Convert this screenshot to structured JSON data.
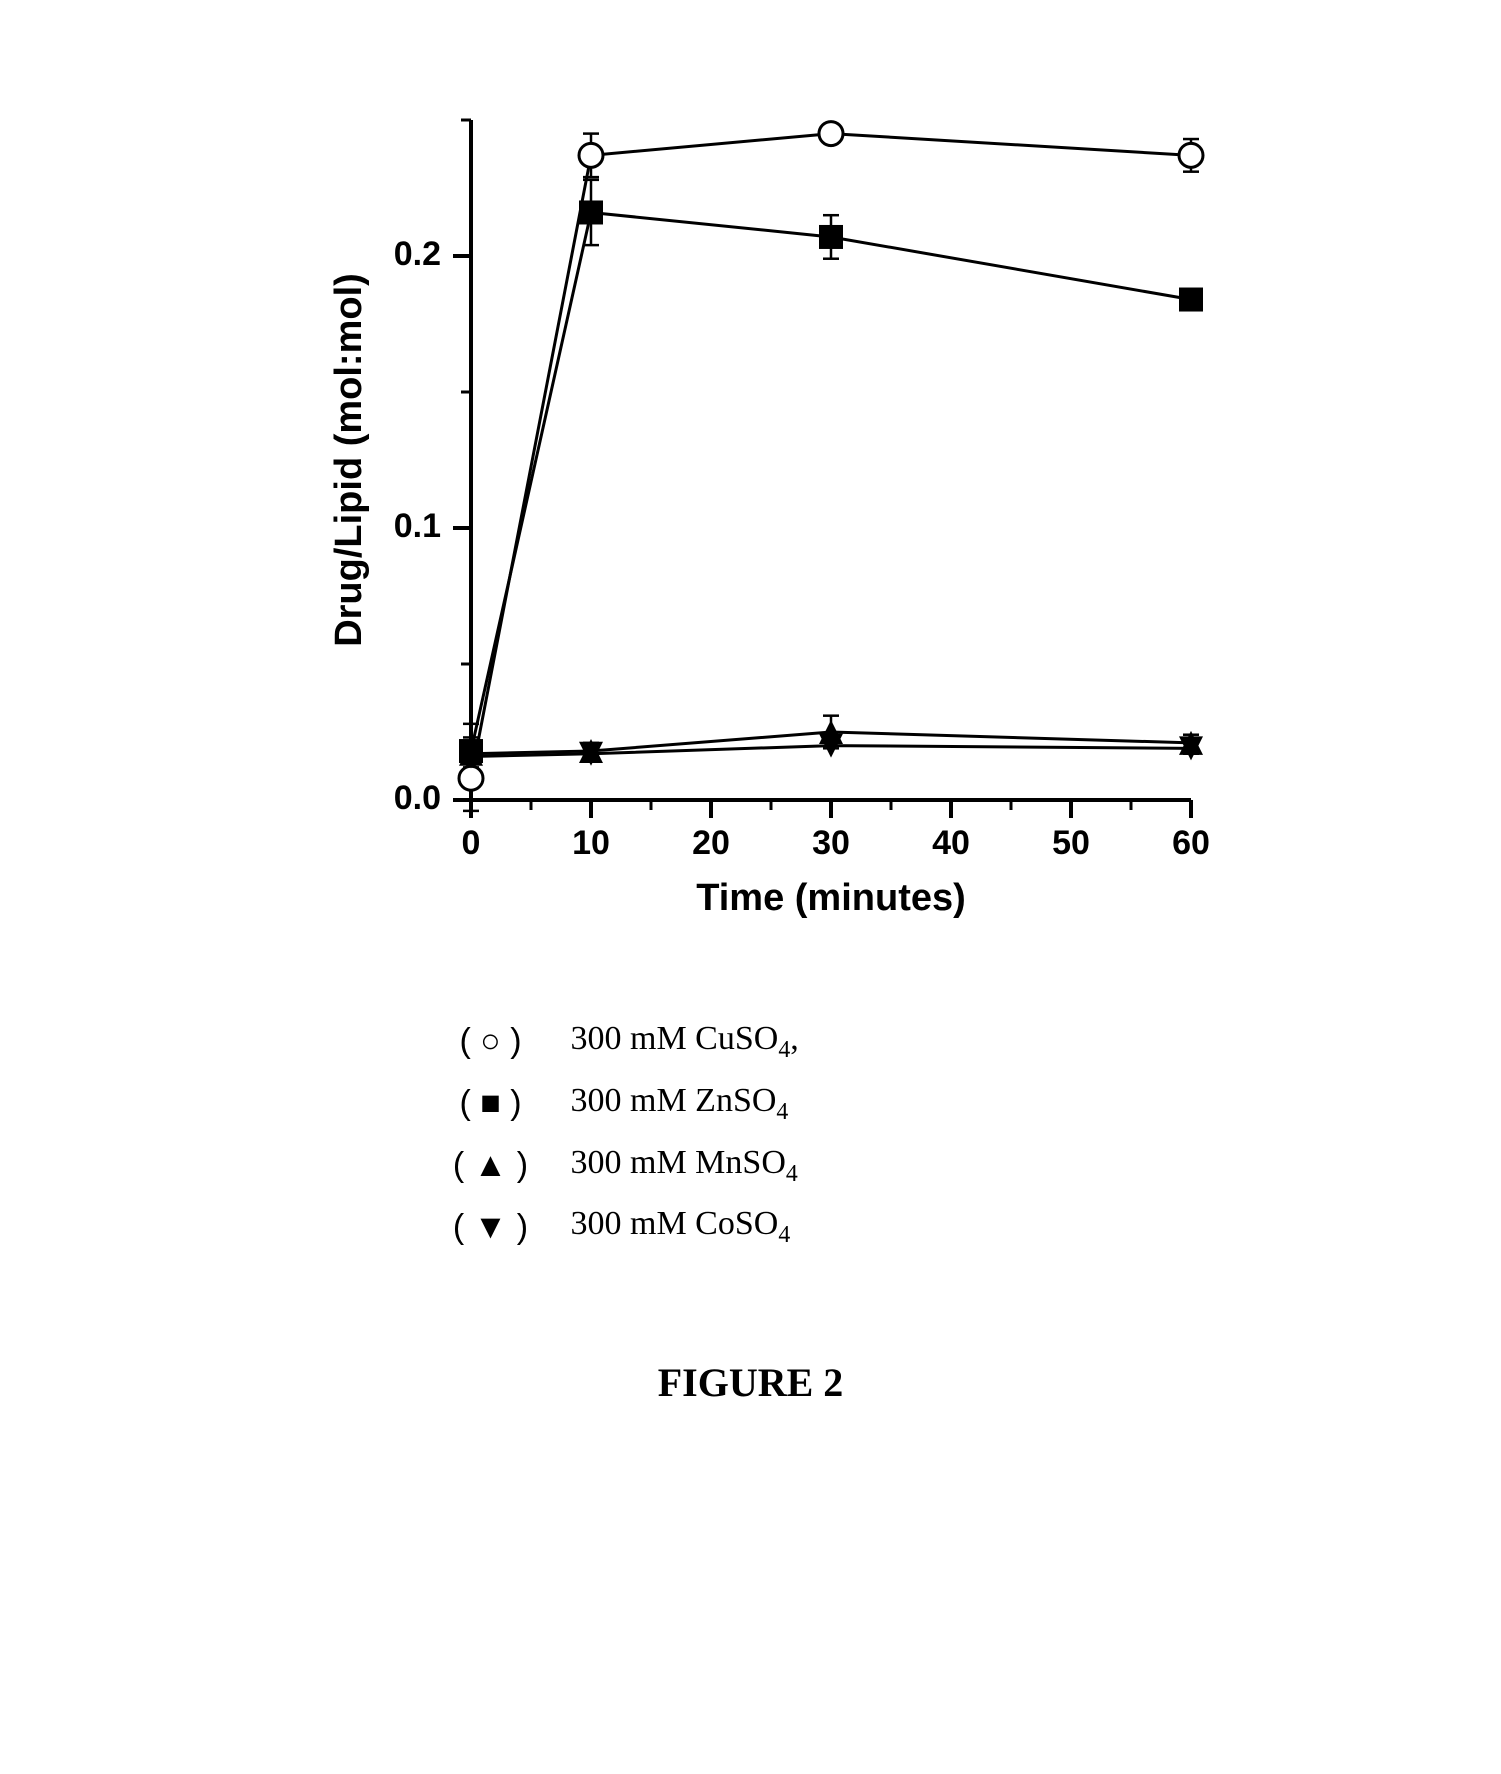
{
  "chart": {
    "type": "line-scatter",
    "x_axis": {
      "label": "Time (minutes)",
      "label_fontsize": 38,
      "min": 0,
      "max": 60,
      "major_ticks": [
        0,
        10,
        20,
        30,
        40,
        50,
        60
      ],
      "minor_ticks": [
        5,
        15,
        25,
        35,
        45,
        55
      ],
      "tick_label_fontsize": 34
    },
    "y_axis": {
      "label": "Drug/Lipid (mol:mol)",
      "label_fontsize": 38,
      "min": 0.0,
      "max": 0.25,
      "major_ticks": [
        0.0,
        0.1,
        0.2
      ],
      "major_tick_labels": [
        "0.0",
        "0.1",
        "0.2"
      ],
      "minor_ticks": [
        0.05,
        0.15,
        0.25
      ],
      "tick_label_fontsize": 34
    },
    "line_color": "#000000",
    "line_width": 3,
    "marker_size": 24,
    "error_cap_width": 16,
    "background_color": "#ffffff",
    "series": [
      {
        "id": "cuso4",
        "legend_label_pre": "300 mM CuSO",
        "legend_label_sub": "4",
        "legend_label_post": ",",
        "marker": "open-circle",
        "x": [
          0,
          10,
          30,
          60
        ],
        "y": [
          0.008,
          0.237,
          0.245,
          0.237
        ],
        "err": [
          0.012,
          0.008,
          0.0,
          0.006
        ]
      },
      {
        "id": "znso4",
        "legend_label_pre": "300 mM ZnSO",
        "legend_label_sub": "4",
        "legend_label_post": "",
        "marker": "filled-square",
        "x": [
          0,
          10,
          30,
          60
        ],
        "y": [
          0.018,
          0.216,
          0.207,
          0.184
        ],
        "err": [
          0.01,
          0.012,
          0.008,
          0.0
        ]
      },
      {
        "id": "mnso4",
        "legend_label_pre": "300 mM MnSO",
        "legend_label_sub": "4",
        "legend_label_post": "",
        "marker": "filled-triangle-up",
        "x": [
          0,
          10,
          30,
          60
        ],
        "y": [
          0.017,
          0.018,
          0.025,
          0.021
        ],
        "err": [
          0.006,
          0.003,
          0.006,
          0.003
        ]
      },
      {
        "id": "coso4",
        "legend_label_pre": "300 mM CoSO",
        "legend_label_sub": "4",
        "legend_label_post": "",
        "marker": "filled-triangle-down",
        "x": [
          0,
          10,
          30,
          60
        ],
        "y": [
          0.016,
          0.017,
          0.02,
          0.019
        ],
        "err": [
          0.004,
          0.002,
          0.0,
          0.002
        ]
      }
    ]
  },
  "legend": {
    "symbols": {
      "open-circle": "○",
      "filled-square": "■",
      "filled-triangle-up": "▲",
      "filled-triangle-down": "▼"
    },
    "paren_open": "(",
    "paren_close": ")"
  },
  "caption": "FIGURE 2"
}
